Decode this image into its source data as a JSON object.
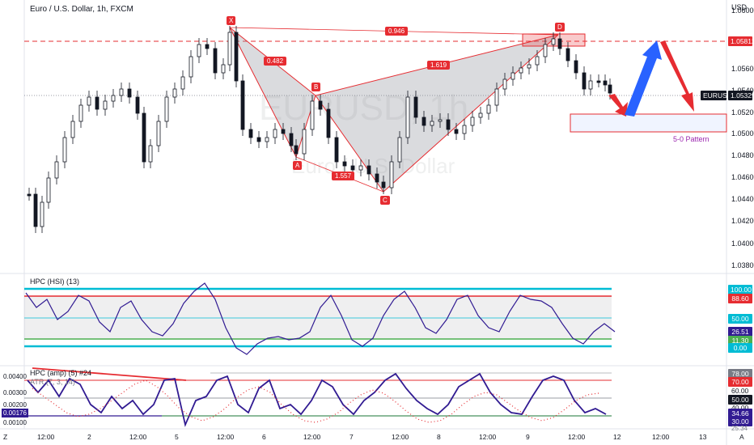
{
  "main": {
    "legend": "Euro / U.S. Dollar, 1h, FXCM",
    "currency": "USD",
    "watermark_symbol": "EURUSD, 1h",
    "watermark_name": "Euro / U.S. Dollar",
    "price_labels": [
      "1.06000",
      "1.05600",
      "1.05400",
      "1.05200",
      "1.05000",
      "1.04800",
      "1.04600",
      "1.04400",
      "1.04200",
      "1.04000",
      "1.03800"
    ],
    "price_level_tag": "1.05812",
    "symbol_tag": "EURUSD",
    "last_price_tag": "1.05329",
    "pattern_points": [
      "X",
      "A",
      "B",
      "C",
      "D"
    ],
    "fib_ratios": [
      "0.482",
      "0.946",
      "1.619",
      "1.557"
    ],
    "pattern_label": "5-0 Pattern"
  },
  "hsi": {
    "legend": "HPC (HSI) (13)",
    "tags": [
      "100.00",
      "88.60",
      "50.00",
      "26.51",
      "11.30",
      "0.00"
    ]
  },
  "amp": {
    "legend": "HPC (amp) (5) #24",
    "sub_legend": "ATR (7, 3, 14)",
    "tags_left": [
      "0.00400",
      "0.00300",
      "0.00200",
      "0.00176",
      "0.00100"
    ],
    "tags_right": [
      "78.00",
      "70.00",
      "60.00",
      "50.00",
      "40.00",
      "34.66",
      "30.00",
      "25.34"
    ]
  },
  "time_axis": [
    "Z",
    "12:00",
    "2",
    "12:00",
    "5",
    "12:00",
    "6",
    "12:00",
    "7",
    "12:00",
    "8",
    "12:00",
    "9",
    "12:00",
    "12",
    "12:00",
    "13",
    "A"
  ],
  "colors": {
    "bull": "#131722",
    "bear": "#131722",
    "red": "#e62c31",
    "blue": "#2962ff",
    "cyan": "#00bcd4",
    "green": "#4caf50"
  }
}
